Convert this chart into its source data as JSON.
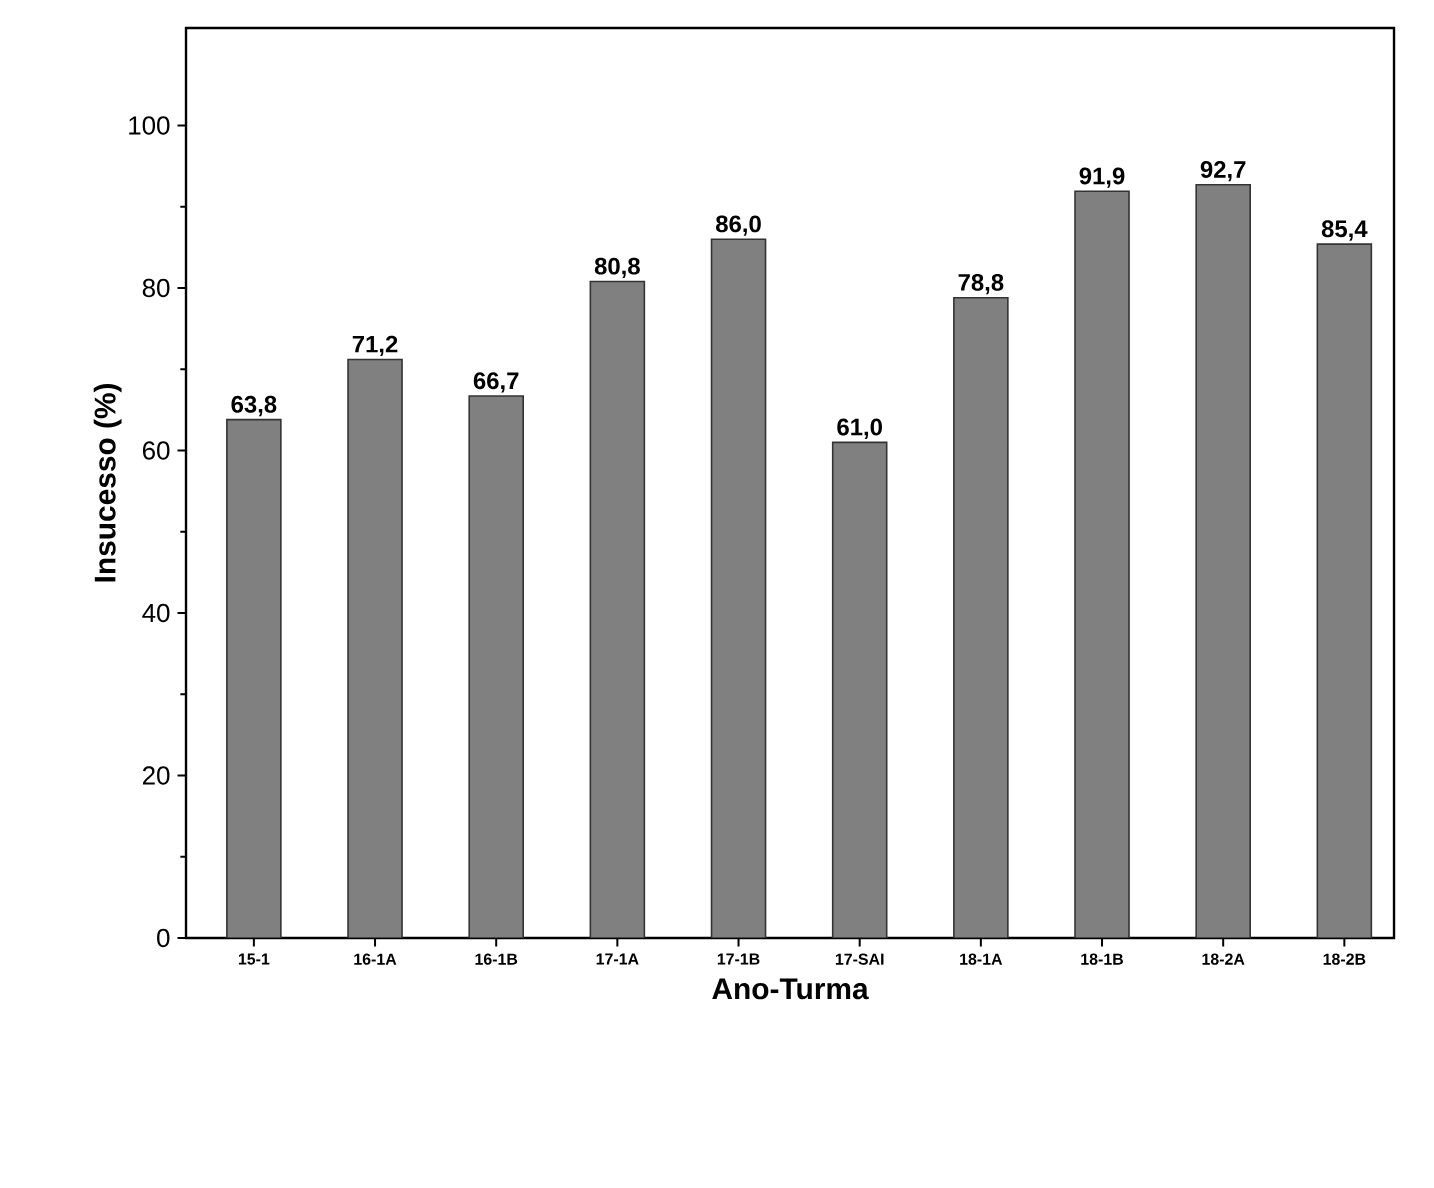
{
  "chart_data": {
    "type": "bar",
    "xlabel": "Ano-Turma",
    "ylabel": "Insucesso (%)",
    "categories": [
      "15-1",
      "16-1A",
      "16-1B",
      "17-1A",
      "17-1B",
      "17-SAI",
      "18-1A",
      "18-1B",
      "18-2A",
      "18-2B"
    ],
    "values": [
      63.8,
      71.2,
      66.7,
      80.8,
      86.0,
      61.0,
      78.8,
      91.9,
      92.7,
      85.4
    ],
    "value_labels": [
      "63,8",
      "71,2",
      "66,7",
      "80,8",
      "86,0",
      "61,0",
      "78,8",
      "91,9",
      "92,7",
      "85,4"
    ],
    "color": "#808080",
    "ylim": [
      0,
      112
    ],
    "yticks": [
      0,
      20,
      40,
      60,
      80,
      100
    ],
    "grid": false
  }
}
